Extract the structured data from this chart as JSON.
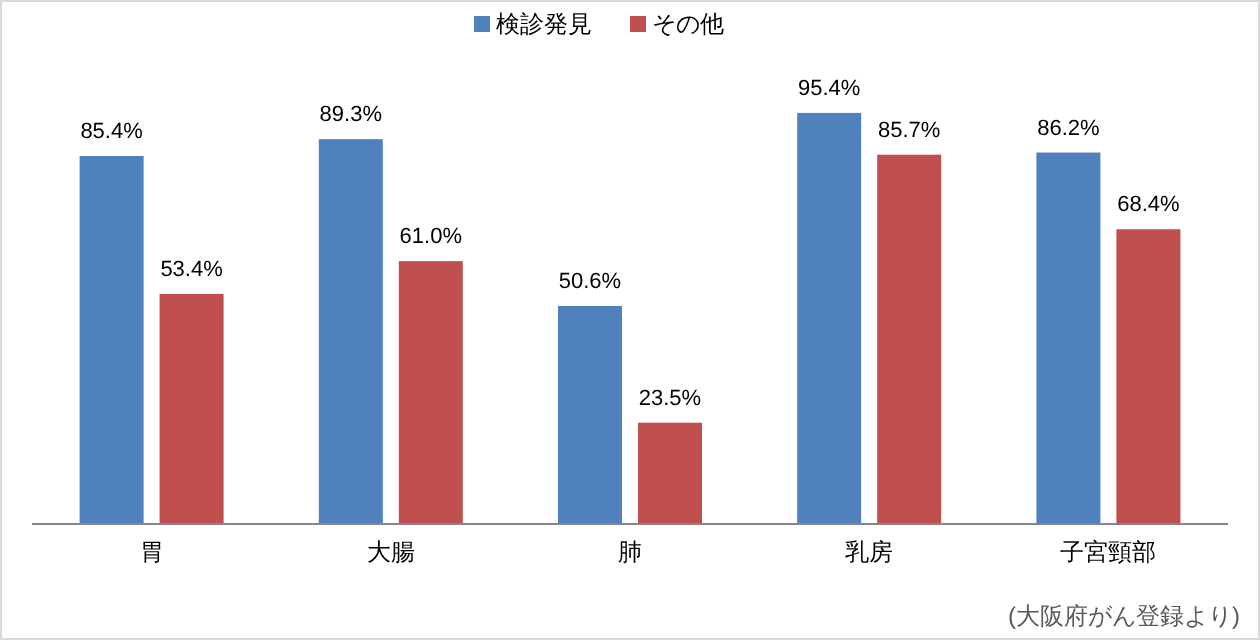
{
  "chart_data": {
    "type": "bar",
    "categories": [
      "胃",
      "大腸",
      "肺",
      "乳房",
      "子宮頸部"
    ],
    "series": [
      {
        "name": "検診発見",
        "color": "#4f81bd",
        "values": [
          85.4,
          89.3,
          50.6,
          95.4,
          86.2
        ],
        "value_labels": [
          "85.4%",
          "89.3%",
          "50.6%",
          "95.4%",
          "86.2%"
        ]
      },
      {
        "name": "その他",
        "color": "#c0504d",
        "values": [
          53.4,
          61.0,
          23.5,
          85.7,
          68.4
        ],
        "value_labels": [
          "53.4%",
          "61.0%",
          "23.5%",
          "85.7%",
          "68.4%"
        ]
      }
    ],
    "legend": "top",
    "annotations": [
      "(大阪府がん登録より)"
    ]
  }
}
